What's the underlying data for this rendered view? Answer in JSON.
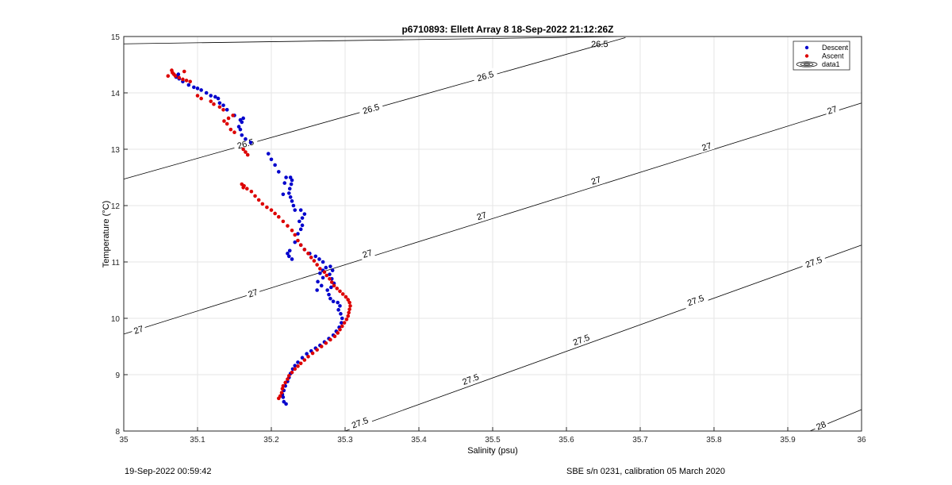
{
  "chart_data": {
    "type": "scatter",
    "title": "p6710893: Ellett Array 8 18-Sep-2022 21:12:26Z",
    "xlabel": "Salinity (psu)",
    "ylabel": "Temperature (°C)",
    "xlim": [
      35,
      36
    ],
    "ylim": [
      8,
      15
    ],
    "xticks": [
      "35",
      "35.1",
      "35.2",
      "35.3",
      "35.4",
      "35.5",
      "35.6",
      "35.7",
      "35.8",
      "35.9",
      "36"
    ],
    "yticks": [
      "8",
      "9",
      "10",
      "11",
      "12",
      "13",
      "14",
      "15"
    ],
    "grid": true,
    "legend": {
      "position": "top-right",
      "entries": [
        "Descent",
        "Ascent",
        "data1"
      ]
    },
    "colors": {
      "descent": "#0000cc",
      "ascent": "#dd0000",
      "contour": "#000000",
      "grid": "#e6e6e6"
    },
    "contours": [
      {
        "label": "26.5",
        "points": [
          [
            35.0,
            14.87
          ],
          [
            35.68,
            15.0
          ]
        ],
        "labels_at": [
          [
            35.645,
            14.87
          ]
        ]
      },
      {
        "label": "26.5",
        "points": [
          [
            35.0,
            12.47
          ],
          [
            35.68,
            14.98
          ]
        ],
        "labels_at": [
          [
            35.165,
            13.1
          ],
          [
            35.335,
            13.72
          ],
          [
            35.49,
            14.3
          ]
        ]
      },
      {
        "label": "27",
        "points": [
          [
            35.0,
            9.72
          ],
          [
            36.0,
            13.82
          ]
        ],
        "labels_at": [
          [
            35.02,
            9.8
          ],
          [
            35.175,
            10.45
          ],
          [
            35.33,
            11.15
          ],
          [
            35.485,
            11.82
          ],
          [
            35.64,
            12.45
          ],
          [
            35.79,
            13.05
          ],
          [
            35.96,
            13.7
          ]
        ]
      },
      {
        "label": "27.5",
        "points": [
          [
            35.3,
            8.0
          ],
          [
            36.0,
            11.3
          ]
        ],
        "labels_at": [
          [
            35.32,
            8.15
          ],
          [
            35.47,
            8.92
          ],
          [
            35.62,
            9.62
          ],
          [
            35.775,
            10.32
          ],
          [
            35.935,
            11.0
          ]
        ]
      },
      {
        "label": "28",
        "points": [
          [
            35.93,
            8.0
          ],
          [
            36.0,
            8.38
          ]
        ],
        "labels_at": [
          [
            35.945,
            8.1
          ]
        ]
      }
    ],
    "series": [
      {
        "name": "Descent",
        "points": [
          [
            35.22,
            8.48
          ],
          [
            35.217,
            8.52
          ],
          [
            35.216,
            8.6
          ],
          [
            35.215,
            8.65
          ],
          [
            35.217,
            8.72
          ],
          [
            35.219,
            8.8
          ],
          [
            35.222,
            8.88
          ],
          [
            35.224,
            8.95
          ],
          [
            35.226,
            9.02
          ],
          [
            35.229,
            9.1
          ],
          [
            35.232,
            9.16
          ],
          [
            35.236,
            9.22
          ],
          [
            35.242,
            9.3
          ],
          [
            35.248,
            9.37
          ],
          [
            35.254,
            9.42
          ],
          [
            35.26,
            9.47
          ],
          [
            35.266,
            9.52
          ],
          [
            35.272,
            9.58
          ],
          [
            35.278,
            9.64
          ],
          [
            35.284,
            9.7
          ],
          [
            35.288,
            9.77
          ],
          [
            35.292,
            9.84
          ],
          [
            35.295,
            9.92
          ],
          [
            35.296,
            10.0
          ],
          [
            35.294,
            10.08
          ],
          [
            35.291,
            10.15
          ],
          [
            35.293,
            10.22
          ],
          [
            35.29,
            10.28
          ],
          [
            35.284,
            10.3
          ],
          [
            35.28,
            10.35
          ],
          [
            35.278,
            10.42
          ],
          [
            35.276,
            10.5
          ],
          [
            35.281,
            10.55
          ],
          [
            35.285,
            10.62
          ],
          [
            35.282,
            10.7
          ],
          [
            35.279,
            10.78
          ],
          [
            35.283,
            10.85
          ],
          [
            35.28,
            10.92
          ],
          [
            35.274,
            10.9
          ],
          [
            35.27,
            10.85
          ],
          [
            35.266,
            10.8
          ],
          [
            35.27,
            10.72
          ],
          [
            35.263,
            10.65
          ],
          [
            35.268,
            10.58
          ],
          [
            35.262,
            10.5
          ],
          [
            35.27,
            11.0
          ],
          [
            35.265,
            11.05
          ],
          [
            35.26,
            11.1
          ],
          [
            35.252,
            11.15
          ],
          [
            35.245,
            11.22
          ],
          [
            35.24,
            11.3
          ],
          [
            35.232,
            11.35
          ],
          [
            35.225,
            11.2
          ],
          [
            35.222,
            11.15
          ],
          [
            35.224,
            11.1
          ],
          [
            35.228,
            11.05
          ],
          [
            35.236,
            11.5
          ],
          [
            35.24,
            11.58
          ],
          [
            35.242,
            11.65
          ],
          [
            35.238,
            11.72
          ],
          [
            35.242,
            11.78
          ],
          [
            35.245,
            11.85
          ],
          [
            35.24,
            11.92
          ],
          [
            35.232,
            11.92
          ],
          [
            35.23,
            12.0
          ],
          [
            35.228,
            12.08
          ],
          [
            35.226,
            12.15
          ],
          [
            35.224,
            12.22
          ],
          [
            35.225,
            12.3
          ],
          [
            35.227,
            12.38
          ],
          [
            35.228,
            12.45
          ],
          [
            35.226,
            12.5
          ],
          [
            35.22,
            12.5
          ],
          [
            35.218,
            12.4
          ],
          [
            35.216,
            12.2
          ],
          [
            35.21,
            12.6
          ],
          [
            35.205,
            12.72
          ],
          [
            35.2,
            12.82
          ],
          [
            35.196,
            12.92
          ],
          [
            35.172,
            13.12
          ],
          [
            35.165,
            13.18
          ],
          [
            35.16,
            13.25
          ],
          [
            35.158,
            13.35
          ],
          [
            35.156,
            13.4
          ],
          [
            35.16,
            13.48
          ],
          [
            35.162,
            13.55
          ],
          [
            35.158,
            13.52
          ],
          [
            35.15,
            13.6
          ],
          [
            35.14,
            13.7
          ],
          [
            35.135,
            13.78
          ],
          [
            35.13,
            13.82
          ],
          [
            35.128,
            13.9
          ],
          [
            35.124,
            13.93
          ],
          [
            35.118,
            13.95
          ],
          [
            35.112,
            14.0
          ],
          [
            35.105,
            14.05
          ],
          [
            35.1,
            14.08
          ],
          [
            35.095,
            14.1
          ],
          [
            35.088,
            14.14
          ],
          [
            35.08,
            14.2
          ],
          [
            35.075,
            14.25
          ],
          [
            35.071,
            14.28
          ],
          [
            35.072,
            14.3
          ],
          [
            35.074,
            14.33
          ]
        ]
      },
      {
        "name": "Ascent",
        "points": [
          [
            35.21,
            8.58
          ],
          [
            35.212,
            8.62
          ],
          [
            35.214,
            8.68
          ],
          [
            35.215,
            8.75
          ],
          [
            35.216,
            8.8
          ],
          [
            35.219,
            8.86
          ],
          [
            35.222,
            8.92
          ],
          [
            35.224,
            8.98
          ],
          [
            35.228,
            9.04
          ],
          [
            35.232,
            9.1
          ],
          [
            35.236,
            9.15
          ],
          [
            35.24,
            9.2
          ],
          [
            35.245,
            9.26
          ],
          [
            35.25,
            9.32
          ],
          [
            35.256,
            9.38
          ],
          [
            35.262,
            9.44
          ],
          [
            35.268,
            9.5
          ],
          [
            35.274,
            9.56
          ],
          [
            35.28,
            9.62
          ],
          [
            35.286,
            9.68
          ],
          [
            35.29,
            9.74
          ],
          [
            35.293,
            9.8
          ],
          [
            35.296,
            9.86
          ],
          [
            35.299,
            9.92
          ],
          [
            35.302,
            9.98
          ],
          [
            35.304,
            10.04
          ],
          [
            35.305,
            10.1
          ],
          [
            35.306,
            10.16
          ],
          [
            35.307,
            10.22
          ],
          [
            35.306,
            10.28
          ],
          [
            35.304,
            10.33
          ],
          [
            35.301,
            10.38
          ],
          [
            35.297,
            10.43
          ],
          [
            35.293,
            10.48
          ],
          [
            35.289,
            10.53
          ],
          [
            35.285,
            10.58
          ],
          [
            35.282,
            10.64
          ],
          [
            35.279,
            10.7
          ],
          [
            35.275,
            10.76
          ],
          [
            35.272,
            10.82
          ],
          [
            35.266,
            10.88
          ],
          [
            35.262,
            10.95
          ],
          [
            35.258,
            11.02
          ],
          [
            35.254,
            11.08
          ],
          [
            35.25,
            11.15
          ],
          [
            35.245,
            11.22
          ],
          [
            35.24,
            11.3
          ],
          [
            35.236,
            11.38
          ],
          [
            35.232,
            11.48
          ],
          [
            35.228,
            11.56
          ],
          [
            35.222,
            11.64
          ],
          [
            35.216,
            11.72
          ],
          [
            35.21,
            11.8
          ],
          [
            35.205,
            11.86
          ],
          [
            35.2,
            11.92
          ],
          [
            35.194,
            11.97
          ],
          [
            35.188,
            12.03
          ],
          [
            35.183,
            12.1
          ],
          [
            35.178,
            12.17
          ],
          [
            35.173,
            12.25
          ],
          [
            35.167,
            12.3
          ],
          [
            35.163,
            12.35
          ],
          [
            35.16,
            12.38
          ],
          [
            35.162,
            12.32
          ],
          [
            35.168,
            12.9
          ],
          [
            35.165,
            12.95
          ],
          [
            35.162,
            13.0
          ],
          [
            35.15,
            13.3
          ],
          [
            35.145,
            13.35
          ],
          [
            35.14,
            13.45
          ],
          [
            35.136,
            13.5
          ],
          [
            35.142,
            13.55
          ],
          [
            35.148,
            13.6
          ],
          [
            35.135,
            13.7
          ],
          [
            35.13,
            13.75
          ],
          [
            35.122,
            13.8
          ],
          [
            35.118,
            13.85
          ],
          [
            35.105,
            13.9
          ],
          [
            35.1,
            13.95
          ],
          [
            35.09,
            14.2
          ],
          [
            35.085,
            14.22
          ],
          [
            35.08,
            14.24
          ],
          [
            35.075,
            14.27
          ],
          [
            35.07,
            14.3
          ],
          [
            35.068,
            14.33
          ],
          [
            35.066,
            14.36
          ],
          [
            35.065,
            14.4
          ],
          [
            35.06,
            14.3
          ],
          [
            35.082,
            14.38
          ]
        ]
      }
    ]
  },
  "footer": {
    "timestamp": "19-Sep-2022 00:59:42",
    "calibration": "SBE s/n 0231, calibration 05 March 2020"
  }
}
